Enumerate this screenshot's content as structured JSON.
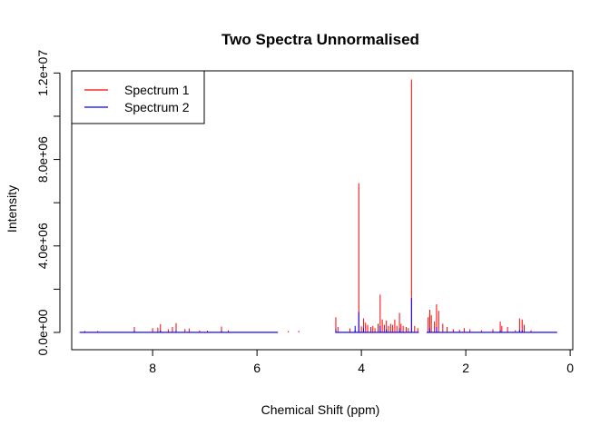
{
  "chart_data": {
    "type": "line",
    "title": "Two Spectra Unnormalised",
    "xlabel": "Chemical Shift (ppm)",
    "ylabel": "Intensity",
    "xlim": [
      9.55,
      -0.05
    ],
    "ylim": [
      -800000,
      12100000
    ],
    "x_reversed": true,
    "x_ticks": [
      8,
      6,
      4,
      2,
      0
    ],
    "x_tick_labels": [
      "8",
      "6",
      "4",
      "2",
      "0"
    ],
    "y_ticks": [
      0,
      2000000,
      4000000,
      6000000,
      8000000,
      10000000,
      12000000
    ],
    "y_tick_labels": [
      "0.0e+00",
      "",
      "4.0e+06",
      "",
      "8.0e+06",
      "",
      "1.2e+07"
    ],
    "grid": false,
    "legend_position": "top-left",
    "baseline_range": [
      9.4,
      0.25
    ],
    "gaps": [
      [
        5.6,
        4.5
      ],
      [
        2.9,
        2.75
      ]
    ],
    "series": [
      {
        "name": "Spectrum 1",
        "color": "#ff0000",
        "peaks": [
          {
            "x": 9.3,
            "y": 60000
          },
          {
            "x": 9.05,
            "y": 70000
          },
          {
            "x": 8.35,
            "y": 250000
          },
          {
            "x": 8.0,
            "y": 200000
          },
          {
            "x": 7.9,
            "y": 220000
          },
          {
            "x": 7.85,
            "y": 380000
          },
          {
            "x": 7.7,
            "y": 150000
          },
          {
            "x": 7.62,
            "y": 250000
          },
          {
            "x": 7.55,
            "y": 430000
          },
          {
            "x": 7.38,
            "y": 160000
          },
          {
            "x": 7.3,
            "y": 180000
          },
          {
            "x": 7.1,
            "y": 90000
          },
          {
            "x": 6.95,
            "y": 80000
          },
          {
            "x": 6.68,
            "y": 270000
          },
          {
            "x": 6.55,
            "y": 100000
          },
          {
            "x": 5.4,
            "y": 60000
          },
          {
            "x": 5.2,
            "y": 70000
          },
          {
            "x": 4.49,
            "y": 700000
          },
          {
            "x": 4.45,
            "y": 250000
          },
          {
            "x": 4.22,
            "y": 180000
          },
          {
            "x": 4.12,
            "y": 120000
          },
          {
            "x": 4.05,
            "y": 6900000
          },
          {
            "x": 4.0,
            "y": 280000
          },
          {
            "x": 3.96,
            "y": 650000
          },
          {
            "x": 3.92,
            "y": 450000
          },
          {
            "x": 3.88,
            "y": 350000
          },
          {
            "x": 3.82,
            "y": 250000
          },
          {
            "x": 3.78,
            "y": 300000
          },
          {
            "x": 3.74,
            "y": 200000
          },
          {
            "x": 3.68,
            "y": 400000
          },
          {
            "x": 3.64,
            "y": 1750000
          },
          {
            "x": 3.6,
            "y": 600000
          },
          {
            "x": 3.56,
            "y": 350000
          },
          {
            "x": 3.52,
            "y": 550000
          },
          {
            "x": 3.48,
            "y": 300000
          },
          {
            "x": 3.44,
            "y": 400000
          },
          {
            "x": 3.4,
            "y": 350000
          },
          {
            "x": 3.36,
            "y": 600000
          },
          {
            "x": 3.32,
            "y": 300000
          },
          {
            "x": 3.27,
            "y": 900000
          },
          {
            "x": 3.24,
            "y": 400000
          },
          {
            "x": 3.2,
            "y": 300000
          },
          {
            "x": 3.14,
            "y": 250000
          },
          {
            "x": 3.1,
            "y": 200000
          },
          {
            "x": 3.04,
            "y": 11700000
          },
          {
            "x": 2.98,
            "y": 300000
          },
          {
            "x": 2.92,
            "y": 200000
          },
          {
            "x": 2.72,
            "y": 700000
          },
          {
            "x": 2.69,
            "y": 1050000
          },
          {
            "x": 2.66,
            "y": 800000
          },
          {
            "x": 2.6,
            "y": 500000
          },
          {
            "x": 2.56,
            "y": 1300000
          },
          {
            "x": 2.52,
            "y": 1000000
          },
          {
            "x": 2.44,
            "y": 400000
          },
          {
            "x": 2.36,
            "y": 250000
          },
          {
            "x": 2.24,
            "y": 150000
          },
          {
            "x": 2.12,
            "y": 120000
          },
          {
            "x": 2.03,
            "y": 200000
          },
          {
            "x": 1.92,
            "y": 150000
          },
          {
            "x": 1.7,
            "y": 100000
          },
          {
            "x": 1.48,
            "y": 150000
          },
          {
            "x": 1.34,
            "y": 500000
          },
          {
            "x": 1.31,
            "y": 300000
          },
          {
            "x": 1.2,
            "y": 250000
          },
          {
            "x": 1.05,
            "y": 100000
          },
          {
            "x": 0.97,
            "y": 650000
          },
          {
            "x": 0.92,
            "y": 600000
          },
          {
            "x": 0.88,
            "y": 350000
          },
          {
            "x": 0.75,
            "y": 100000
          }
        ]
      },
      {
        "name": "Spectrum 2",
        "color": "#0000ff",
        "peaks": [
          {
            "x": 9.3,
            "y": 50000
          },
          {
            "x": 8.35,
            "y": 80000
          },
          {
            "x": 7.85,
            "y": 90000
          },
          {
            "x": 7.55,
            "y": 100000
          },
          {
            "x": 6.68,
            "y": 70000
          },
          {
            "x": 4.49,
            "y": 150000
          },
          {
            "x": 4.12,
            "y": 300000
          },
          {
            "x": 4.05,
            "y": 950000
          },
          {
            "x": 3.96,
            "y": 200000
          },
          {
            "x": 3.64,
            "y": 300000
          },
          {
            "x": 3.52,
            "y": 150000
          },
          {
            "x": 3.27,
            "y": 200000
          },
          {
            "x": 3.04,
            "y": 1600000
          },
          {
            "x": 2.69,
            "y": 200000
          },
          {
            "x": 2.56,
            "y": 250000
          },
          {
            "x": 1.34,
            "y": 100000
          },
          {
            "x": 0.97,
            "y": 120000
          },
          {
            "x": 0.92,
            "y": 100000
          }
        ]
      }
    ]
  }
}
